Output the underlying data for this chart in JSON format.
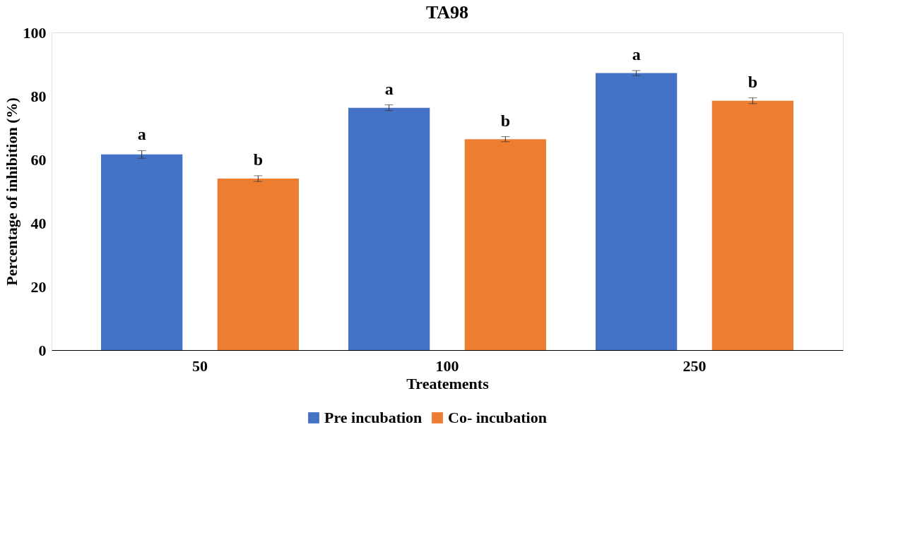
{
  "chart_data": {
    "type": "bar",
    "title": "TA98",
    "xlabel": "Treatements",
    "ylabel": "Percentage of inhibition (%)",
    "categories": [
      "50",
      "100",
      "250"
    ],
    "series": [
      {
        "name": "Pre incubation",
        "color": "#4472c4",
        "values": [
          61.6,
          76.3,
          87.2
        ],
        "errors": [
          1.2,
          0.9,
          0.8
        ],
        "value_labels": [
          "a",
          "a",
          "a"
        ]
      },
      {
        "name": "Co- incubation",
        "color": "#ed7d31",
        "values": [
          54.0,
          66.4,
          78.5
        ],
        "errors": [
          0.9,
          0.8,
          0.9
        ],
        "value_labels": [
          "b",
          "b",
          "b"
        ]
      }
    ],
    "ylim": [
      0,
      100
    ],
    "yticks": [
      0,
      20,
      40,
      60,
      80,
      100
    ],
    "grid": false,
    "legend": "bottom"
  }
}
